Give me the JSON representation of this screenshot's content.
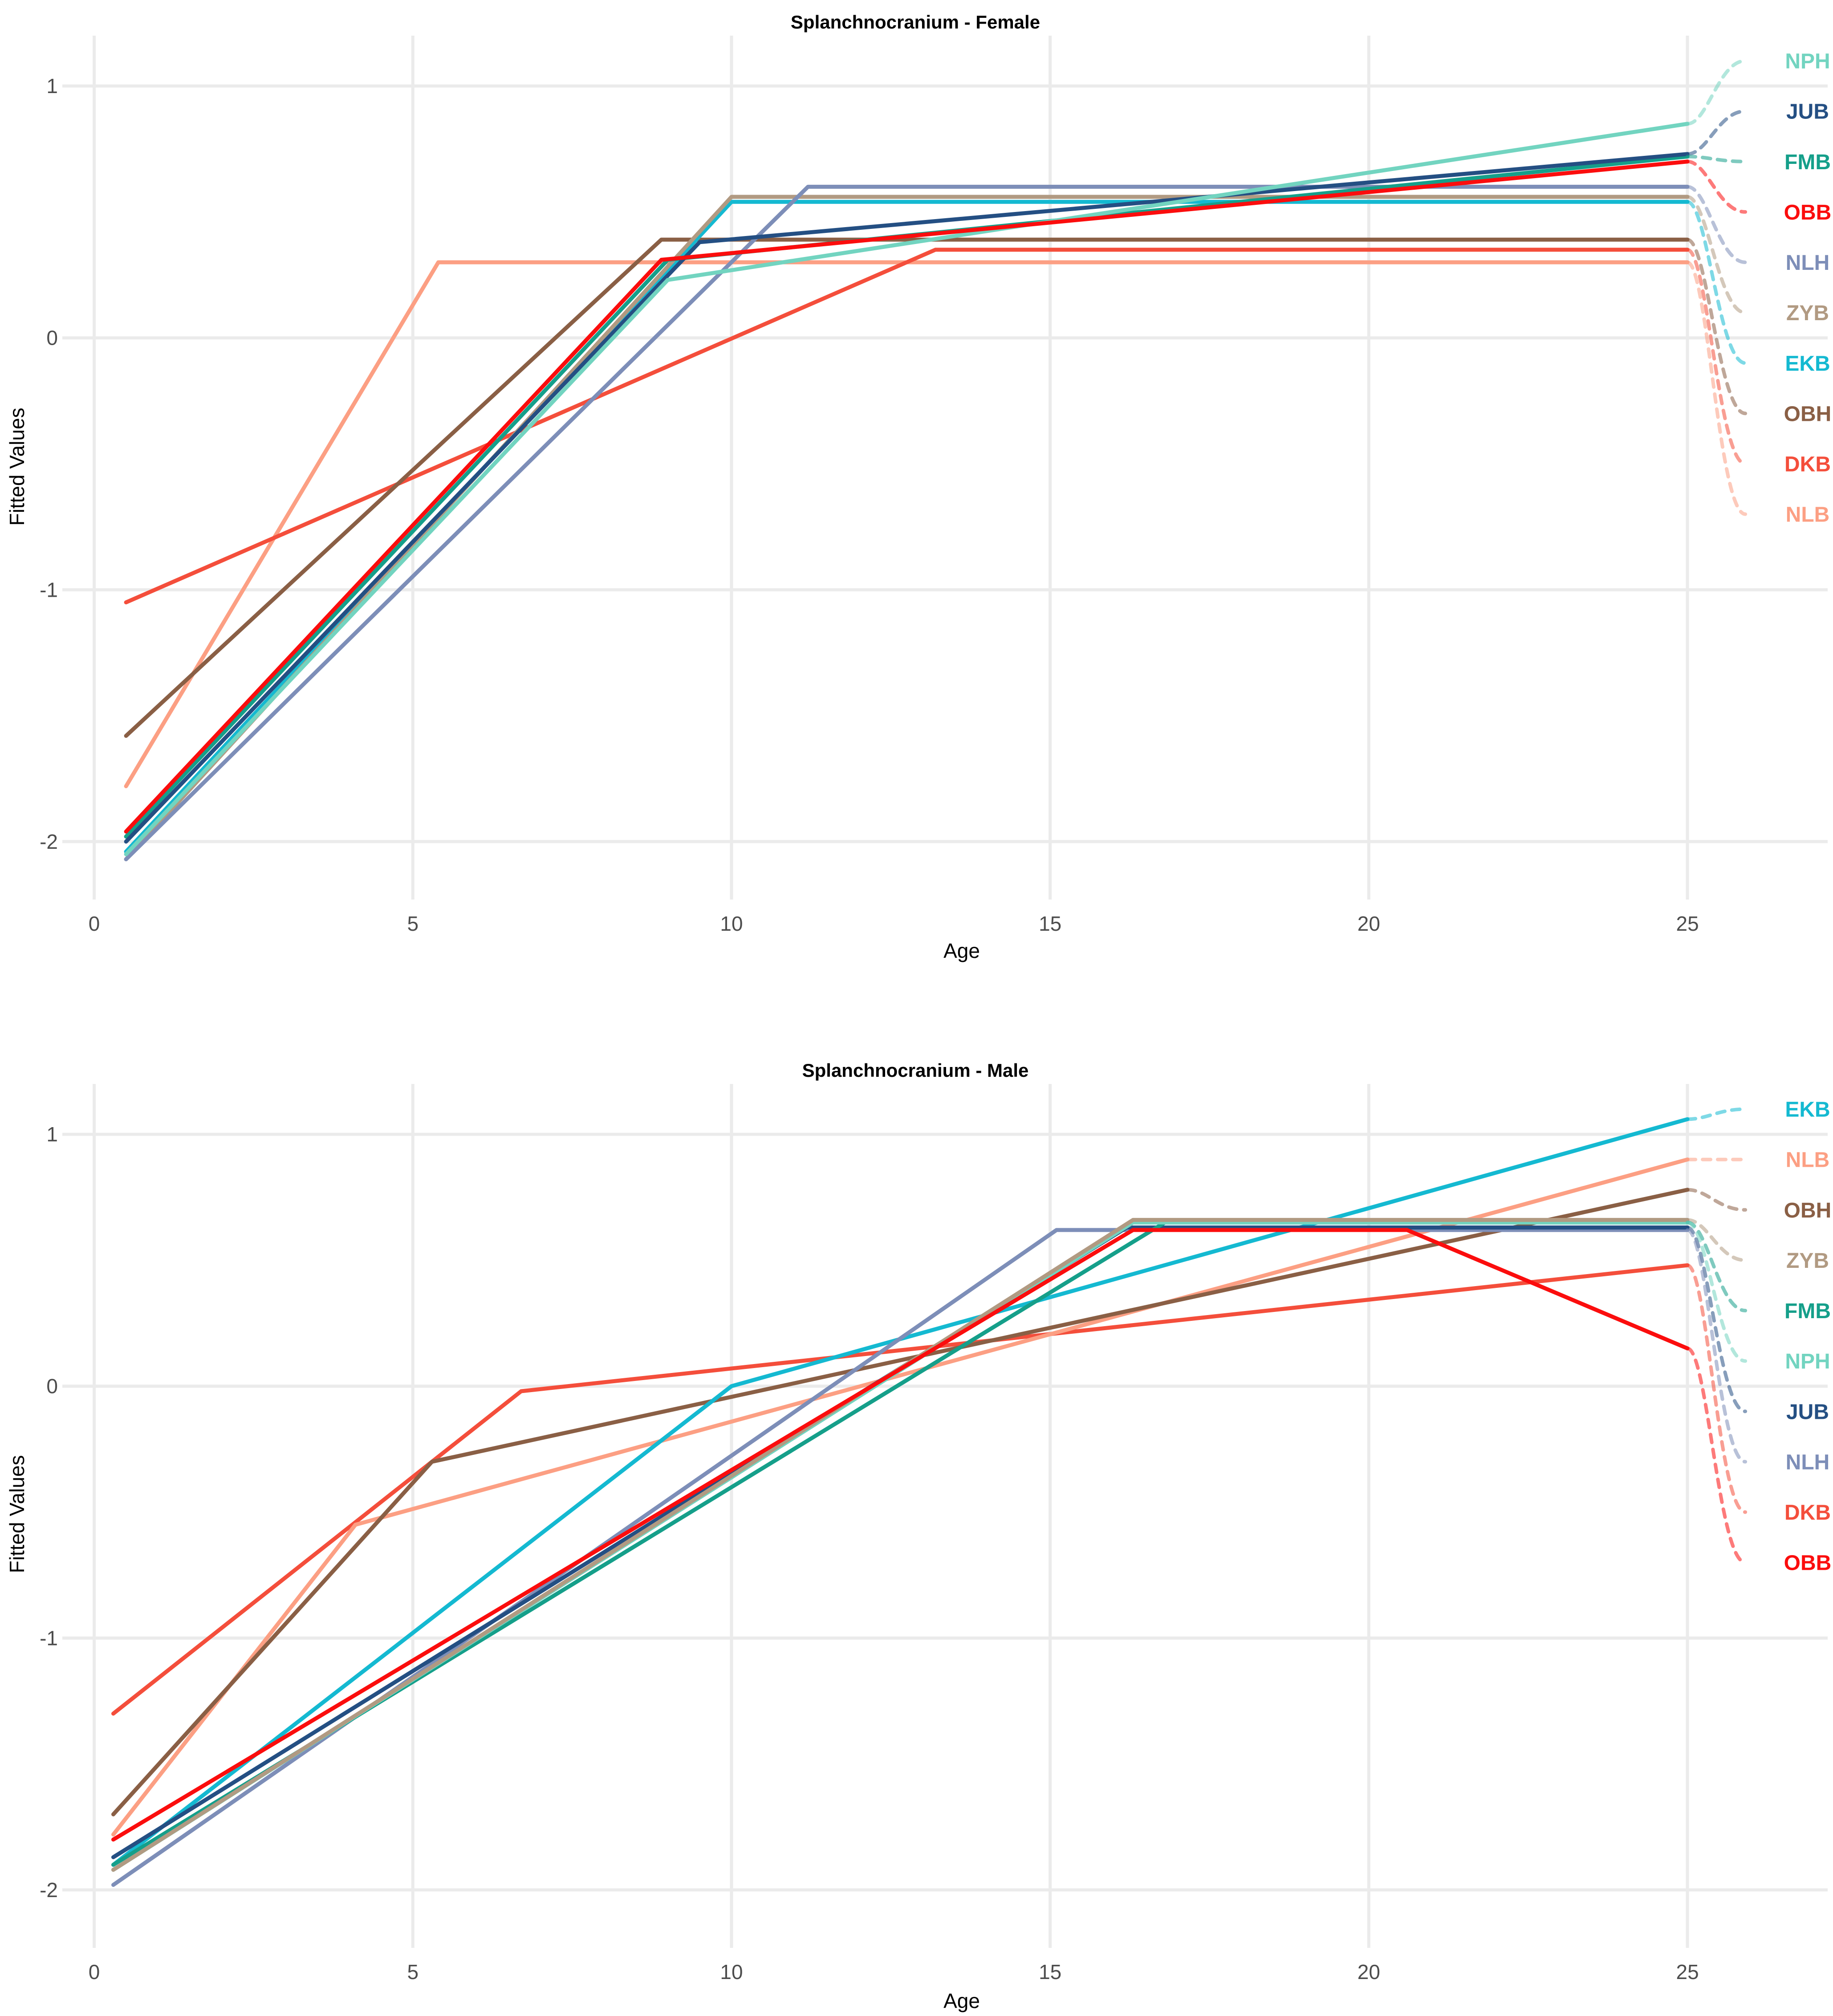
{
  "chart_data": [
    {
      "type": "line",
      "title": "Splanchnocranium - Female",
      "xlabel": "Age",
      "ylabel": "Fitted Values",
      "xlim": [
        -0.5,
        27.2
      ],
      "ylim": [
        -2.23,
        1.2
      ],
      "xticks": [
        0,
        5,
        10,
        15,
        20,
        25
      ],
      "yticks": [
        -2,
        -1,
        0,
        1
      ],
      "xtick_labels": [
        "0",
        "5",
        "10",
        "15",
        "20",
        "25"
      ],
      "ytick_labels": [
        "-2",
        "-1",
        "0",
        "1"
      ],
      "grid": true,
      "label_x": 25,
      "label_y_values": [
        1.1,
        0.9,
        0.7,
        0.5,
        0.3,
        0.1,
        -0.1,
        -0.3,
        -0.5,
        -0.7
      ],
      "series": [
        {
          "name": "NLB",
          "color": "#fc9f83",
          "x": [
            0.5,
            5.4,
            25
          ],
          "values": [
            -1.78,
            0.3,
            0.3
          ]
        },
        {
          "name": "DKB",
          "color": "#f44e3b",
          "x": [
            0.5,
            13.2,
            25
          ],
          "values": [
            -1.05,
            0.35,
            0.35
          ]
        },
        {
          "name": "OBH",
          "color": "#8a5f45",
          "x": [
            0.5,
            8.9,
            25
          ],
          "values": [
            -1.58,
            0.39,
            0.39
          ]
        },
        {
          "name": "EKB",
          "color": "#14b9d1",
          "x": [
            0.5,
            10,
            25
          ],
          "values": [
            -2.04,
            0.54,
            0.54
          ]
        },
        {
          "name": "ZYB",
          "color": "#b19a82",
          "x": [
            0.5,
            10,
            25
          ],
          "values": [
            -2.07,
            0.56,
            0.56
          ]
        },
        {
          "name": "NLH",
          "color": "#7d8eb8",
          "x": [
            0.5,
            11.2,
            25
          ],
          "values": [
            -2.07,
            0.6,
            0.6
          ]
        },
        {
          "name": "FMB",
          "color": "#159f8a",
          "x": [
            0.5,
            9.0,
            25
          ],
          "values": [
            -1.98,
            0.31,
            0.72
          ]
        },
        {
          "name": "JUB",
          "color": "#244f83",
          "x": [
            0.5,
            9.5,
            25
          ],
          "values": [
            -2.0,
            0.38,
            0.73
          ]
        },
        {
          "name": "NPH",
          "color": "#72d4c0",
          "x": [
            0.5,
            9.0,
            25
          ],
          "values": [
            -2.05,
            0.23,
            0.85
          ]
        },
        {
          "name": "OBB",
          "color": "#fb0d0d",
          "x": [
            0.5,
            8.9,
            25
          ],
          "values": [
            -1.96,
            0.31,
            0.7
          ]
        }
      ],
      "label_order": [
        "NPH",
        "JUB",
        "FMB",
        "OBB",
        "NLH",
        "ZYB",
        "EKB",
        "OBH",
        "DKB",
        "NLB"
      ]
    },
    {
      "type": "line",
      "title": "Splanchnocranium - Male",
      "xlabel": "Age",
      "ylabel": "Fitted Values",
      "xlim": [
        -0.5,
        27.2
      ],
      "ylim": [
        -2.23,
        1.2
      ],
      "xticks": [
        0,
        5,
        10,
        15,
        20,
        25
      ],
      "yticks": [
        -2,
        -1,
        0,
        1
      ],
      "xtick_labels": [
        "0",
        "5",
        "10",
        "15",
        "20",
        "25"
      ],
      "ytick_labels": [
        "-2",
        "-1",
        "0",
        "1"
      ],
      "grid": true,
      "label_x": 25,
      "label_y_values": [
        1.1,
        0.9,
        0.7,
        0.5,
        0.3,
        0.1,
        -0.1,
        -0.3,
        -0.5,
        -0.7
      ],
      "series": [
        {
          "name": "DKB",
          "color": "#f44e3b",
          "x": [
            0.3,
            6.7,
            25
          ],
          "values": [
            -1.3,
            -0.02,
            0.48
          ]
        },
        {
          "name": "NLB",
          "color": "#fc9f83",
          "x": [
            0.3,
            4.1,
            25
          ],
          "values": [
            -1.78,
            -0.55,
            0.9
          ]
        },
        {
          "name": "OBH",
          "color": "#8a5f45",
          "x": [
            0.3,
            5.3,
            25
          ],
          "values": [
            -1.7,
            -0.3,
            0.78
          ]
        },
        {
          "name": "EKB",
          "color": "#14b9d1",
          "x": [
            0.3,
            10,
            25
          ],
          "values": [
            -1.9,
            0.0,
            1.06
          ]
        },
        {
          "name": "NLH",
          "color": "#7d8eb8",
          "x": [
            0.3,
            15.1,
            25
          ],
          "values": [
            -1.98,
            0.62,
            0.62
          ]
        },
        {
          "name": "JUB",
          "color": "#244f83",
          "x": [
            0.3,
            16.2,
            25
          ],
          "values": [
            -1.87,
            0.63,
            0.63
          ]
        },
        {
          "name": "FMB",
          "color": "#159f8a",
          "x": [
            0.3,
            16.8,
            25
          ],
          "values": [
            -1.9,
            0.65,
            0.65
          ]
        },
        {
          "name": "NPH",
          "color": "#72d4c0",
          "x": [
            0.3,
            16.3,
            25
          ],
          "values": [
            -1.92,
            0.65,
            0.65
          ]
        },
        {
          "name": "ZYB",
          "color": "#b19a82",
          "x": [
            0.3,
            16.3,
            25
          ],
          "values": [
            -1.92,
            0.66,
            0.66
          ]
        },
        {
          "name": "OBB",
          "color": "#fb0d0d",
          "x": [
            0.3,
            16.3,
            20.6,
            25
          ],
          "values": [
            -1.8,
            0.62,
            0.62,
            0.15
          ]
        }
      ],
      "label_order": [
        "EKB",
        "NLB",
        "OBH",
        "ZYB",
        "FMB",
        "NPH",
        "JUB",
        "NLH",
        "DKB",
        "OBB"
      ]
    }
  ]
}
